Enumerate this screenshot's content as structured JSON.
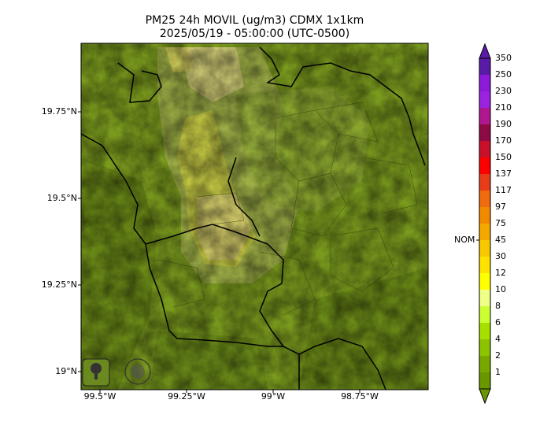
{
  "title": "PM25 24h MOVIL (ug/m3) CDMX 1x1km",
  "subtitle": "2025/05/19 - 05:00:00 (UTC-0500)",
  "y_ticks": [
    "19.75°N",
    "19.5°N",
    "19.25°N",
    "19°N"
  ],
  "x_ticks": [
    "99.5°W",
    "99.25°W",
    "99°W",
    "98.75°W"
  ],
  "colorbar": {
    "labels": [
      "350",
      "250",
      "230",
      "210",
      "190",
      "170",
      "150",
      "137",
      "117",
      "97",
      "75",
      "45",
      "30",
      "12",
      "10",
      "8",
      "6",
      "4",
      "2",
      "1"
    ],
    "colors": [
      "#5a1aa8",
      "#8c1ad8",
      "#9a22e0",
      "#b0178e",
      "#8e0a45",
      "#c8102a",
      "#ff0000",
      "#e83c18",
      "#f06a10",
      "#f28a00",
      "#f5a800",
      "#f8c800",
      "#ffe200",
      "#ffff00",
      "#f0ff88",
      "#ccff33",
      "#a6e000",
      "#8cc400",
      "#78a800",
      "#6a9600"
    ],
    "nom_label": "NOM"
  },
  "logos": [
    "SEDEMA",
    "CALIDAD DEL AIRE"
  ]
}
